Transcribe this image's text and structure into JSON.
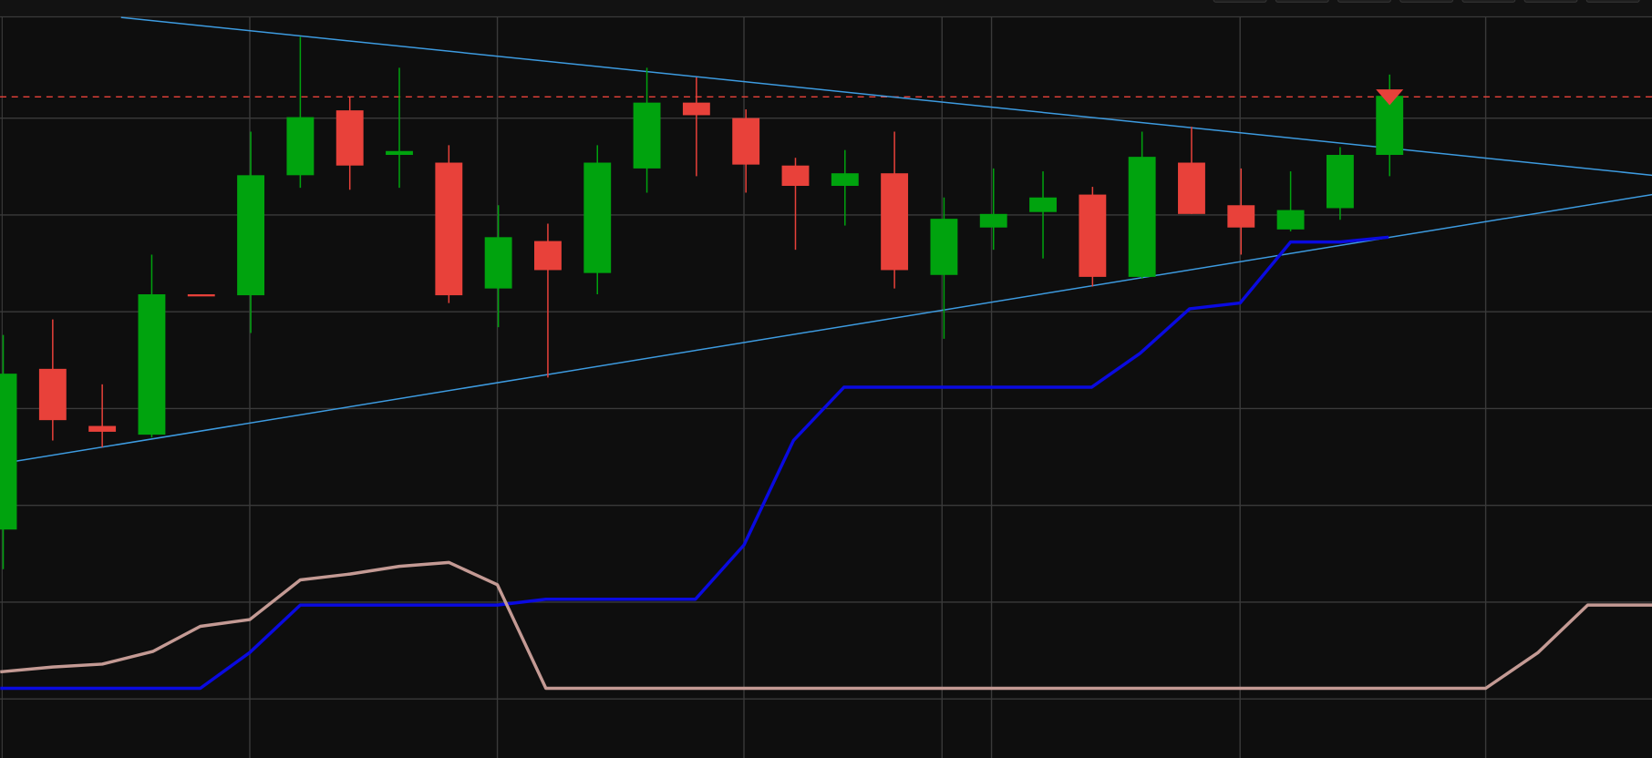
{
  "chart_data": {
    "type": "candlestick",
    "x": [
      0,
      1,
      2,
      3,
      4,
      5,
      6,
      7,
      8,
      9,
      10,
      11,
      12,
      13,
      14,
      15,
      16,
      17,
      18,
      19,
      20,
      21,
      22,
      23,
      24,
      25,
      26,
      27,
      28
    ],
    "open": [
      1.75,
      3.41,
      2.82,
      2.73,
      4.18,
      4.17,
      5.41,
      6.08,
      5.62,
      5.54,
      4.24,
      4.73,
      4.4,
      5.48,
      6.16,
      6.0,
      5.51,
      5.3,
      5.43,
      4.38,
      4.87,
      5.03,
      5.21,
      4.36,
      5.54,
      5.1,
      4.85,
      5.07,
      5.62
    ],
    "high": [
      3.76,
      3.92,
      3.25,
      4.59,
      4.18,
      5.86,
      6.84,
      6.22,
      6.52,
      5.72,
      5.1,
      4.91,
      5.72,
      6.52,
      6.42,
      6.09,
      5.59,
      5.67,
      5.86,
      5.18,
      5.48,
      5.45,
      5.29,
      5.86,
      5.91,
      5.48,
      5.45,
      5.7,
      6.45
    ],
    "low": [
      1.34,
      2.67,
      2.6,
      2.7,
      4.17,
      3.78,
      5.28,
      5.26,
      5.28,
      4.09,
      3.84,
      3.32,
      4.18,
      5.23,
      5.4,
      5.23,
      4.64,
      4.89,
      4.24,
      3.72,
      4.64,
      4.55,
      4.26,
      4.34,
      5.01,
      4.59,
      4.83,
      4.95,
      5.4
    ],
    "close": [
      3.36,
      2.88,
      2.76,
      4.18,
      4.17,
      5.41,
      6.01,
      5.51,
      5.66,
      4.17,
      4.77,
      4.43,
      5.54,
      6.16,
      6.03,
      5.52,
      5.3,
      5.43,
      4.43,
      4.96,
      5.01,
      5.18,
      4.36,
      5.6,
      5.01,
      4.87,
      5.05,
      5.62,
      6.23
    ],
    "up_color": "#00a30e",
    "down_color": "#e8413a",
    "xlim": [
      -0.064,
      33.298
    ],
    "ylim": [
      -0.61,
      7.22
    ],
    "xticks": [
      4.98,
      9.98,
      14.96,
      18.96,
      19.96,
      24.98,
      29.94
    ],
    "yticks": [
      0,
      1,
      2,
      3,
      4,
      5,
      6
    ],
    "grid": true,
    "overlays": [
      {
        "type": "line",
        "color": "#3d9be0",
        "width": 1.3,
        "x": [
          2.38,
          33.3
        ],
        "values": [
          7.04,
          5.41
        ]
      },
      {
        "type": "line",
        "color": "#3d9be0",
        "width": 1.3,
        "x": [
          -0.06,
          33.3
        ],
        "values": [
          2.43,
          5.21
        ]
      },
      {
        "type": "line",
        "color": "#0a0ae0",
        "width": 3,
        "x": [
          -0.06,
          3.98,
          4.98,
          6.0,
          9.98,
          10.96,
          13.98,
          14.96,
          15.96,
          16.98,
          21.98,
          22.96,
          23.96,
          24.98,
          26.0,
          27.0,
          27.98
        ],
        "values": [
          0.11,
          0.11,
          0.48,
          0.97,
          0.97,
          1.03,
          1.03,
          1.59,
          2.67,
          3.22,
          3.22,
          3.57,
          4.03,
          4.09,
          4.72,
          4.72,
          4.77
        ]
      },
      {
        "type": "line",
        "color": "#c49a94",
        "width": 3,
        "x": [
          -0.06,
          1.0,
          2.0,
          3.02,
          3.98,
          4.98,
          6.0,
          7.0,
          8.0,
          9.0,
          9.98,
          10.96,
          29.94,
          31.0,
          32.0,
          33.3
        ],
        "values": [
          0.28,
          0.33,
          0.36,
          0.49,
          0.75,
          0.82,
          1.23,
          1.29,
          1.37,
          1.41,
          1.18,
          0.11,
          0.11,
          0.48,
          0.97,
          0.97
        ]
      }
    ],
    "levels": [
      {
        "value": 6.22,
        "color": "#e8413a",
        "dashed": true
      }
    ],
    "markers": [
      {
        "x": 28,
        "value": 6.22,
        "color": "#e8413a"
      }
    ]
  }
}
